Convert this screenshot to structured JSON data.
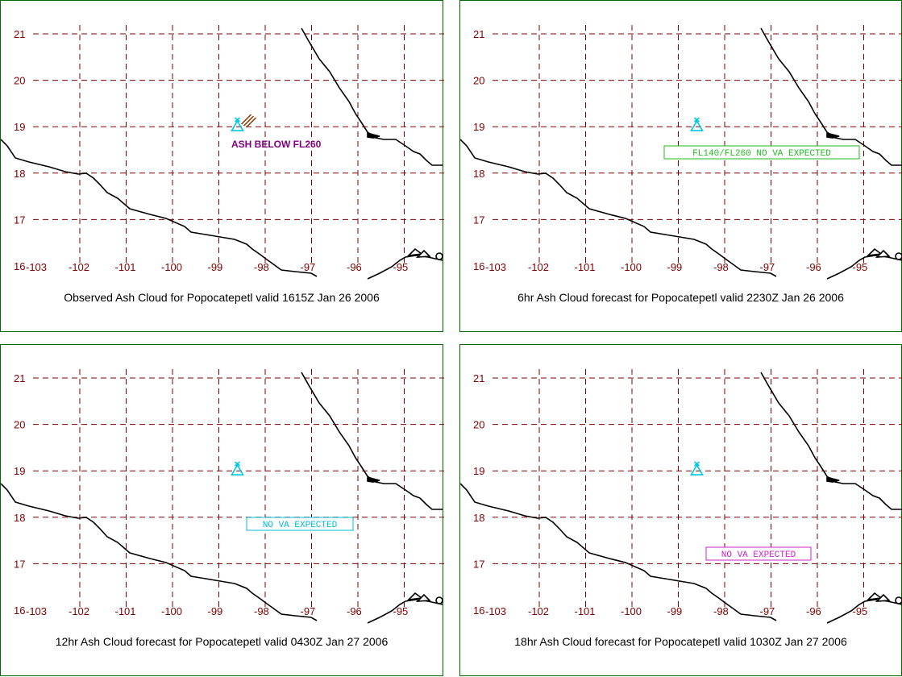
{
  "colors": {
    "grid": "#800000",
    "label": "#800000",
    "coast": "#000000",
    "volcano": "#00c8e0",
    "border": "#006600",
    "ash_obs": "#800080",
    "ash_plume": "#8b4513"
  },
  "map": {
    "lat_ticks": [
      "21",
      "20",
      "19",
      "18",
      "17",
      "16"
    ],
    "lon_ticks": [
      "-103",
      "-102",
      "-101",
      "-100",
      "-99",
      "-98",
      "-97",
      "-96",
      "-95"
    ],
    "volcano_icon": "volcano-triangle-icon",
    "volcano_location": {
      "lon": -98.6,
      "lat": 19.02
    }
  },
  "panels": [
    {
      "caption": "Observed Ash Cloud for Popocatepetl valid 1615Z Jan 26 2006",
      "annotation": {
        "text": "ASH BELOW FL260",
        "style": "plain",
        "color": "#800080"
      },
      "plume": true
    },
    {
      "caption": "6hr Ash Cloud forecast for Popocatepetl valid 2230Z Jan 26 2006",
      "annotation": {
        "text": "FL140/FL260 NO VA EXPECTED",
        "style": "box",
        "color": "#22bb22"
      },
      "plume": false
    },
    {
      "caption": "12hr Ash Cloud forecast for Popocatepetl valid 0430Z Jan 27 2006",
      "annotation": {
        "text": "NO VA EXPECTED",
        "style": "box",
        "color": "#00bcd4"
      },
      "plume": false
    },
    {
      "caption": "18hr Ash Cloud forecast for Popocatepetl valid 1030Z Jan 27 2006",
      "annotation": {
        "text": "NO VA EXPECTED",
        "style": "box",
        "color": "#cc22cc"
      },
      "plume": false
    }
  ]
}
